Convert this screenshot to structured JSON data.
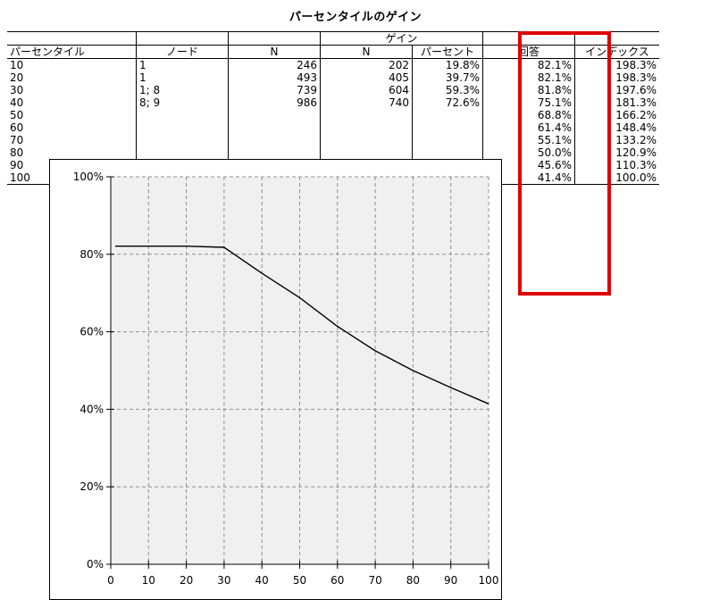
{
  "title": "パーセンタイルのゲイン",
  "table": {
    "headers": {
      "percentile": "パーセンタイル",
      "node": "ノード",
      "n": "N",
      "gain_group": "ゲイン",
      "gain_n": "N",
      "gain_percent": "パーセント",
      "response": "回答",
      "index": "インデックス"
    },
    "rows": [
      {
        "pct": "10",
        "node": "1",
        "n": "246",
        "gn": "202",
        "gp": "19.8%",
        "resp": "82.1%",
        "idx": "198.3%"
      },
      {
        "pct": "20",
        "node": "1",
        "n": "493",
        "gn": "405",
        "gp": "39.7%",
        "resp": "82.1%",
        "idx": "198.3%"
      },
      {
        "pct": "30",
        "node": "1; 8",
        "n": "739",
        "gn": "604",
        "gp": "59.3%",
        "resp": "81.8%",
        "idx": "197.6%"
      },
      {
        "pct": "40",
        "node": "8; 9",
        "n": "986",
        "gn": "740",
        "gp": "72.6%",
        "resp": "75.1%",
        "idx": "181.3%"
      },
      {
        "pct": "50",
        "node": "",
        "n": "",
        "gn": "",
        "gp": "",
        "resp": "68.8%",
        "idx": "166.2%"
      },
      {
        "pct": "60",
        "node": "",
        "n": "",
        "gn": "",
        "gp": "",
        "resp": "61.4%",
        "idx": "148.4%"
      },
      {
        "pct": "70",
        "node": "",
        "n": "",
        "gn": "",
        "gp": "",
        "resp": "55.1%",
        "idx": "133.2%"
      },
      {
        "pct": "80",
        "node": "",
        "n": "",
        "gn": "",
        "gp": "",
        "resp": "50.0%",
        "idx": "120.9%"
      },
      {
        "pct": "90",
        "node": "",
        "n": "",
        "gn": "",
        "gp": "",
        "resp": "45.6%",
        "idx": "110.3%"
      },
      {
        "pct": "100",
        "node": "",
        "n": "",
        "gn": "",
        "gp": "",
        "resp": "41.4%",
        "idx": "100.0%"
      }
    ]
  },
  "highlight_color": "#e00000",
  "chart_data": {
    "type": "line",
    "title": "",
    "xlabel": "",
    "ylabel": "",
    "x": [
      0,
      10,
      20,
      30,
      40,
      50,
      60,
      70,
      80,
      90,
      100
    ],
    "series": [
      {
        "values": [
          82.1,
          82.1,
          82.1,
          81.8,
          75.1,
          68.8,
          61.4,
          55.1,
          50.0,
          45.6,
          41.4
        ]
      }
    ],
    "line_start_x": 0,
    "xlim": [
      0,
      100
    ],
    "ylim": [
      0,
      100
    ],
    "x_ticks": [
      "0",
      "10",
      "20",
      "30",
      "40",
      "50",
      "60",
      "70",
      "80",
      "90",
      "100"
    ],
    "y_ticks": [
      "0%",
      "20%",
      "40%",
      "60%",
      "80%",
      "100%"
    ],
    "grid": true,
    "plot_background": "#f0f0f0",
    "line_color": "#000000"
  }
}
